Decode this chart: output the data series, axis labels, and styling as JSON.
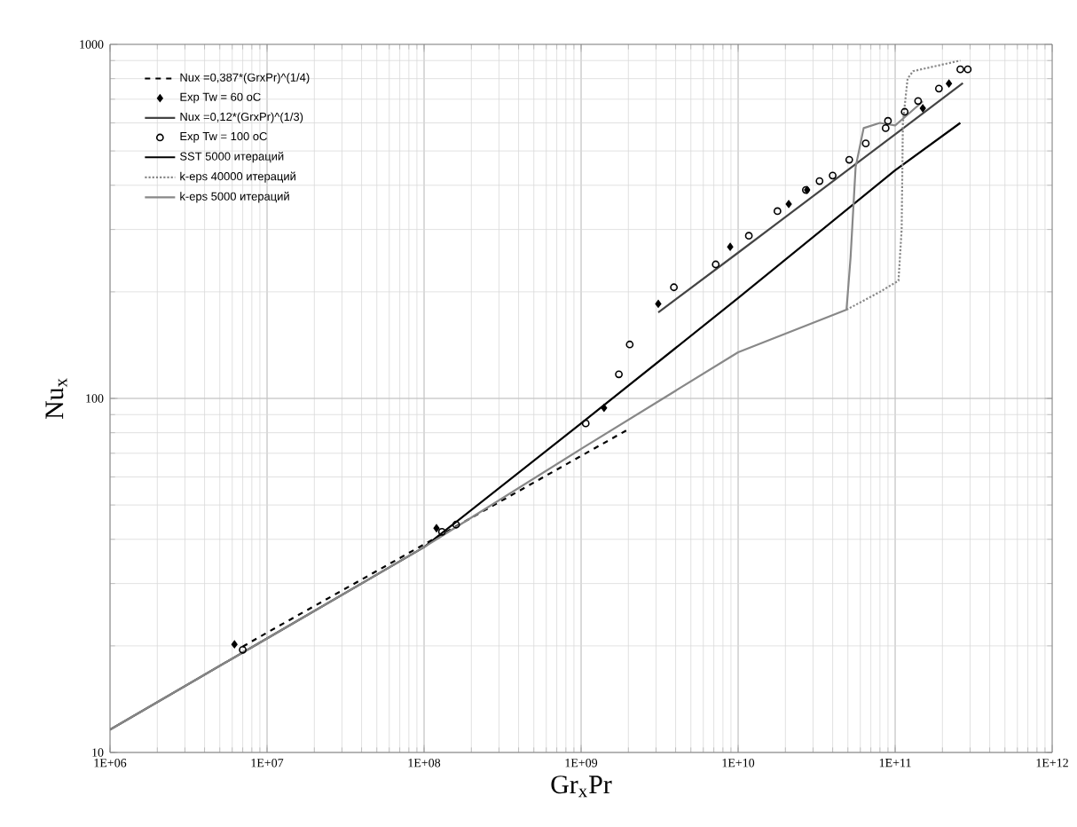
{
  "chart_data": {
    "type": "line",
    "xlabel": "Gr$_{x}$Pr",
    "ylabel": "Nu$_{x}$",
    "log": "xy",
    "grid": true,
    "legend": "top left",
    "xlim": [
      1000000.0,
      1000000000000.0
    ],
    "ylim": [
      10,
      1000
    ],
    "xticks": [
      {
        "value": 1000000.0,
        "label": "1E+06"
      },
      {
        "value": 10000000.0,
        "label": "1E+07"
      },
      {
        "value": 100000000.0,
        "label": "1E+08"
      },
      {
        "value": 1000000000.0,
        "label": "1E+09"
      },
      {
        "value": 10000000000.0,
        "label": "1E+10"
      },
      {
        "value": 100000000000.0,
        "label": "1E+11"
      },
      {
        "value": 1000000000000.0,
        "label": "1E+12"
      }
    ],
    "yticks": [
      10,
      100,
      1000
    ],
    "series": [
      {
        "name": "Nux =0,387*(GrxPr)^(1/4)",
        "line_style": "dashed",
        "color": "#000000",
        "x": [
          7000000.0,
          10000000.0,
          100000000.0,
          1000000000.0,
          2000000000.0
        ],
        "values": [
          19.9,
          21.8,
          38.7,
          68.8,
          81.8
        ]
      },
      {
        "name": "Exp Tw = 60 oC",
        "type": "scatter",
        "marker": "diamond",
        "color": "#000000",
        "x": [
          6200000.0,
          120000000.0,
          1400000000.0,
          3100000000.0,
          8900000000.0,
          21000000000.0,
          27500000000.0,
          150000000000.0,
          220000000000.0
        ],
        "values": [
          20.2,
          43,
          94,
          185,
          268,
          354,
          388,
          660,
          775
        ]
      },
      {
        "name": "Nux =0,12*(GrxPr)^(1/3)",
        "line_style": "solid",
        "color": "#444444",
        "x": [
          3100000000.0,
          10000000000.0,
          100000000000.0,
          270000000000.0
        ],
        "values": [
          175,
          258,
          557,
          777
        ]
      },
      {
        "name": "Exp Tw = 100 oC",
        "type": "scatter",
        "marker": "circle",
        "color": "#000000",
        "x": [
          7000000.0,
          130000000.0,
          160000000.0,
          1070000000.0,
          1740000000.0,
          2040000000.0,
          3900000000.0,
          7200000000.0,
          11700000000.0,
          17800000000.0,
          27000000000.0,
          33000000000.0,
          40000000000.0,
          51000000000.0,
          65000000000.0,
          87000000000.0,
          90000000000.0,
          115000000000.0,
          140000000000.0,
          190000000000.0,
          260000000000.0,
          290000000000.0
        ],
        "values": [
          19.5,
          42,
          44,
          85,
          117,
          142,
          206,
          239,
          288,
          338,
          388,
          411,
          426,
          472,
          525,
          580,
          608,
          645,
          692,
          750,
          850,
          850
        ]
      },
      {
        "name": "SST 5000 итераций",
        "line_style": "solid",
        "color": "#000000",
        "x": [
          1000000.0,
          10000000.0,
          100000000.0,
          1000000000.0,
          10000000000.0,
          100000000000.0,
          260000000000.0
        ],
        "values": [
          11.6,
          21,
          38,
          85,
          192,
          441,
          600
        ]
      },
      {
        "name": "k-eps 40000 итераций",
        "line_style": "dotted",
        "color": "#888888",
        "x": [
          49000000000.0,
          80000000000.0,
          105000000000.0,
          110000000000.0,
          112000000000.0,
          120000000000.0,
          130000000000.0,
          260000000000.0
        ],
        "values": [
          178,
          200,
          215,
          300,
          600,
          800,
          840,
          900
        ]
      },
      {
        "name": "k-eps 5000 итераций",
        "line_style": "solid",
        "color": "#888888",
        "x": [
          1000000.0,
          10000000.0,
          100000000.0,
          1000000000.0,
          10000000000.0,
          49000000000.0,
          52000000000.0,
          56000000000.0,
          63000000000.0,
          80000000000.0,
          100000000000.0,
          150000000000.0
        ],
        "values": [
          11.6,
          21,
          38,
          72,
          135,
          178,
          250,
          450,
          580,
          600,
          590,
          690
        ]
      }
    ]
  }
}
